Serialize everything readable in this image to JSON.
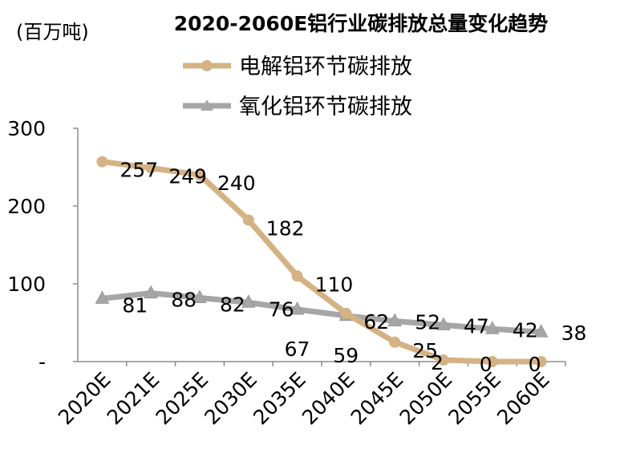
{
  "chart_data": {
    "type": "line",
    "title": "2020-2060E铝行业碳排放总量变化趋势",
    "ylabel": "(百万吨)",
    "categories": [
      "2020E",
      "2021E",
      "2025E",
      "2030E",
      "2035E",
      "2040E",
      "2045E",
      "2050E",
      "2055E",
      "2060E"
    ],
    "yticks": [
      "-",
      "100",
      "200",
      "300"
    ],
    "ylim": [
      0,
      300
    ],
    "grid": false,
    "legend_position": "top",
    "series": [
      {
        "name": "电解铝环节碳排放",
        "color": "#D4B283",
        "marker": "circle",
        "values": [
          257,
          249,
          240,
          182,
          110,
          62,
          25,
          2,
          0,
          0
        ],
        "labels": [
          "257",
          "249",
          "240",
          "182",
          "110",
          "62",
          "25",
          "2",
          "0",
          "0"
        ]
      },
      {
        "name": "氧化铝环节碳排放",
        "color": "#A6A6A6",
        "marker": "triangle",
        "values": [
          81,
          88,
          82,
          76,
          67,
          59,
          52,
          47,
          42,
          38
        ],
        "labels": [
          "81",
          "88",
          "82",
          "76",
          "67",
          "59",
          "52",
          "47",
          "42",
          "38"
        ]
      }
    ]
  }
}
